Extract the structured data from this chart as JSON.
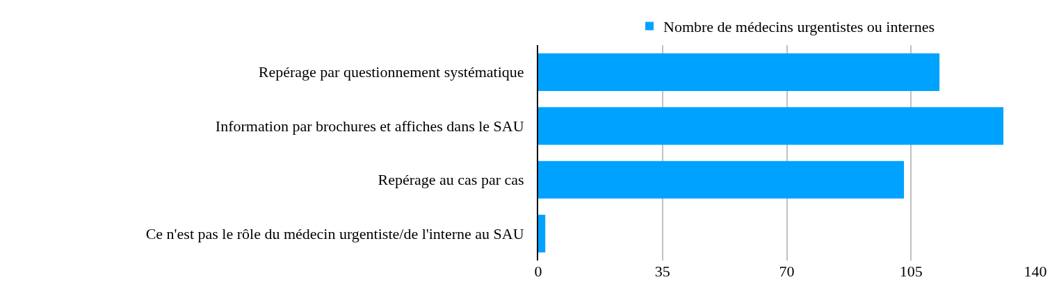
{
  "chart_data": {
    "type": "bar",
    "orientation": "horizontal",
    "categories": [
      "Repérage par questionnement systématique",
      "Information par brochures et affiches dans le SAU",
      "Repérage au cas par cas",
      "Ce n'est pas le rôle du médecin urgentiste/de l'interne au SAU"
    ],
    "series": [
      {
        "name": "Nombre de médecins urgentistes ou internes",
        "color": "#00a2ff",
        "values": [
          113,
          131,
          103,
          2
        ]
      }
    ],
    "xlim": [
      0,
      140
    ],
    "xticks": [
      0,
      35,
      70,
      105,
      140
    ],
    "grid": "x",
    "legend": "top"
  }
}
